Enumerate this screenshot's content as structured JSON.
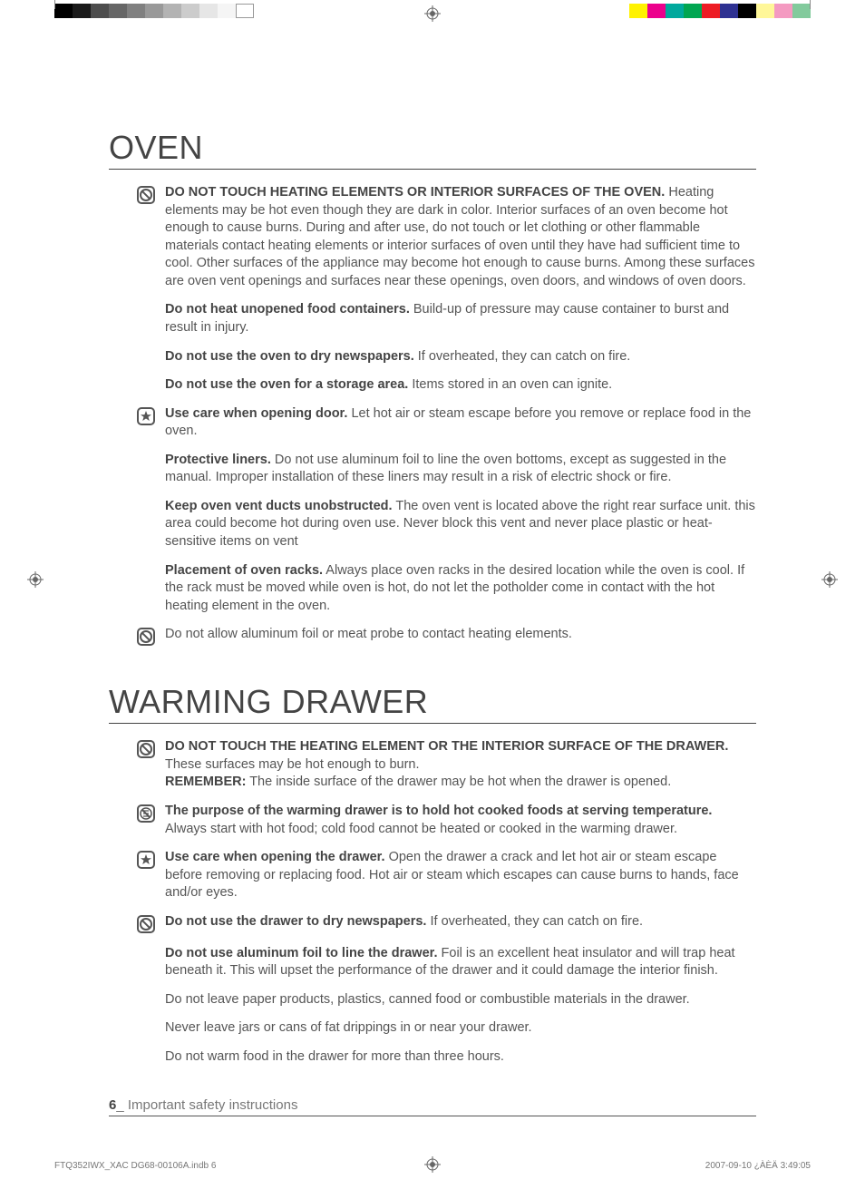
{
  "printer": {
    "left_grayscale": [
      "#000000",
      "#1a1a1a",
      "#4d4d4d",
      "#666666",
      "#808080",
      "#999999",
      "#b3b3b3",
      "#cccccc",
      "#e6e6e6",
      "#f5f5f5",
      "#ffffff"
    ],
    "right_colors": [
      "#fff200",
      "#ec008c",
      "#00a99d",
      "#00a651",
      "#ed1c24",
      "#2e3192",
      "#000000",
      "#fff799",
      "#f49ac1",
      "#82ca9c"
    ],
    "reg_mark_color": "#666666",
    "file_ref": "FTQ352IWX_XAC DG68-00106A.indb   6",
    "timestamp": "2007-09-10   ¿ÀÈÄ 3:49:05"
  },
  "sections": [
    {
      "title": "OVEN",
      "items": [
        {
          "icon": "prohibit",
          "bold": "DO NOT TOUCH HEATING ELEMENTS OR INTERIOR SURFACES OF THE OVEN.",
          "text": "Heating elements may be hot even though they are dark in color. Interior surfaces of an oven become hot enough to cause burns. During and after use, do not touch or let clothing or other flammable materials contact heating elements or interior surfaces of oven until they have had sufficient time to cool. Other surfaces of the appliance may become hot enough to cause burns. Among these surfaces are oven vent openings and surfaces near these openings, oven doors, and windows of oven doors."
        },
        {
          "icon": "",
          "bold": "Do not heat unopened food containers.",
          "text": "Build-up of pressure may cause container to burst and result in injury."
        },
        {
          "icon": "",
          "bold": "Do not use the oven to dry newspapers.",
          "text": "If overheated, they can catch on fire."
        },
        {
          "icon": "",
          "bold": "Do not use the oven for a storage area.",
          "text": "Items stored in an oven can ignite."
        },
        {
          "icon": "star",
          "bold": "Use care when opening door.",
          "text": "Let hot air or steam escape before you remove or replace food in the oven."
        },
        {
          "icon": "",
          "bold": "Protective liners.",
          "text": "Do not use aluminum foil to line the oven bottoms, except as suggested in the manual. Improper installation of these liners may result in a risk of electric shock or fire."
        },
        {
          "icon": "",
          "bold": "Keep oven vent ducts unobstructed.",
          "text": "The oven vent is located above the right rear surface unit. this area could become hot during oven use. Never block this vent and never place plastic or heat-sensitive items on vent"
        },
        {
          "icon": "",
          "bold": "Placement of oven racks.",
          "text": "Always place oven racks in the desired location while the oven is cool. If the rack must be moved while oven is hot, do not let the potholder come in contact with the hot heating element in the oven."
        },
        {
          "icon": "prohibit",
          "bold": "",
          "text": "Do not allow aluminum foil or meat probe to contact heating elements."
        }
      ]
    },
    {
      "title": "WARMING DRAWER",
      "items": [
        {
          "icon": "prohibit",
          "bold": "DO NOT TOUCH THE HEATING ELEMENT OR THE INTERIOR SURFACE OF THE DRAWER.",
          "text": "These surfaces may be hot enough to burn.",
          "bold2": "REMEMBER:",
          "text2": "The inside surface of the drawer may be hot when the drawer is opened."
        },
        {
          "icon": "disassemble",
          "bold": "The purpose of the warming drawer is to hold hot cooked foods at serving temperature.",
          "text": "Always start with hot food; cold food cannot be heated or cooked in the warming drawer."
        },
        {
          "icon": "star",
          "bold": "Use care when opening the drawer.",
          "text": "Open the drawer a crack and let hot air or steam escape before removing or replacing food. Hot air or steam which escapes can cause burns to hands, face and/or eyes."
        },
        {
          "icon": "prohibit",
          "bold": "Do not use the drawer to dry newspapers.",
          "text": "If overheated, they can catch on fire."
        },
        {
          "icon": "",
          "bold": "Do not use aluminum foil to line the drawer.",
          "text": "Foil is an excellent heat insulator and will trap heat beneath it. This will upset the performance of the drawer and it could damage the interior finish."
        },
        {
          "icon": "",
          "bold": "",
          "text": "Do not leave paper products, plastics, canned food or combustible materials in the drawer."
        },
        {
          "icon": "",
          "bold": "",
          "text": "Never leave jars or cans of fat drippings in or near your drawer."
        },
        {
          "icon": "",
          "bold": "",
          "text": "Do not warm food in the drawer for more than three hours."
        }
      ]
    }
  ],
  "footer": {
    "page_num": "6",
    "separator": "_",
    "label": "Important safety instructions"
  },
  "icons": {
    "stroke": "#555555",
    "stroke_width": 2
  }
}
